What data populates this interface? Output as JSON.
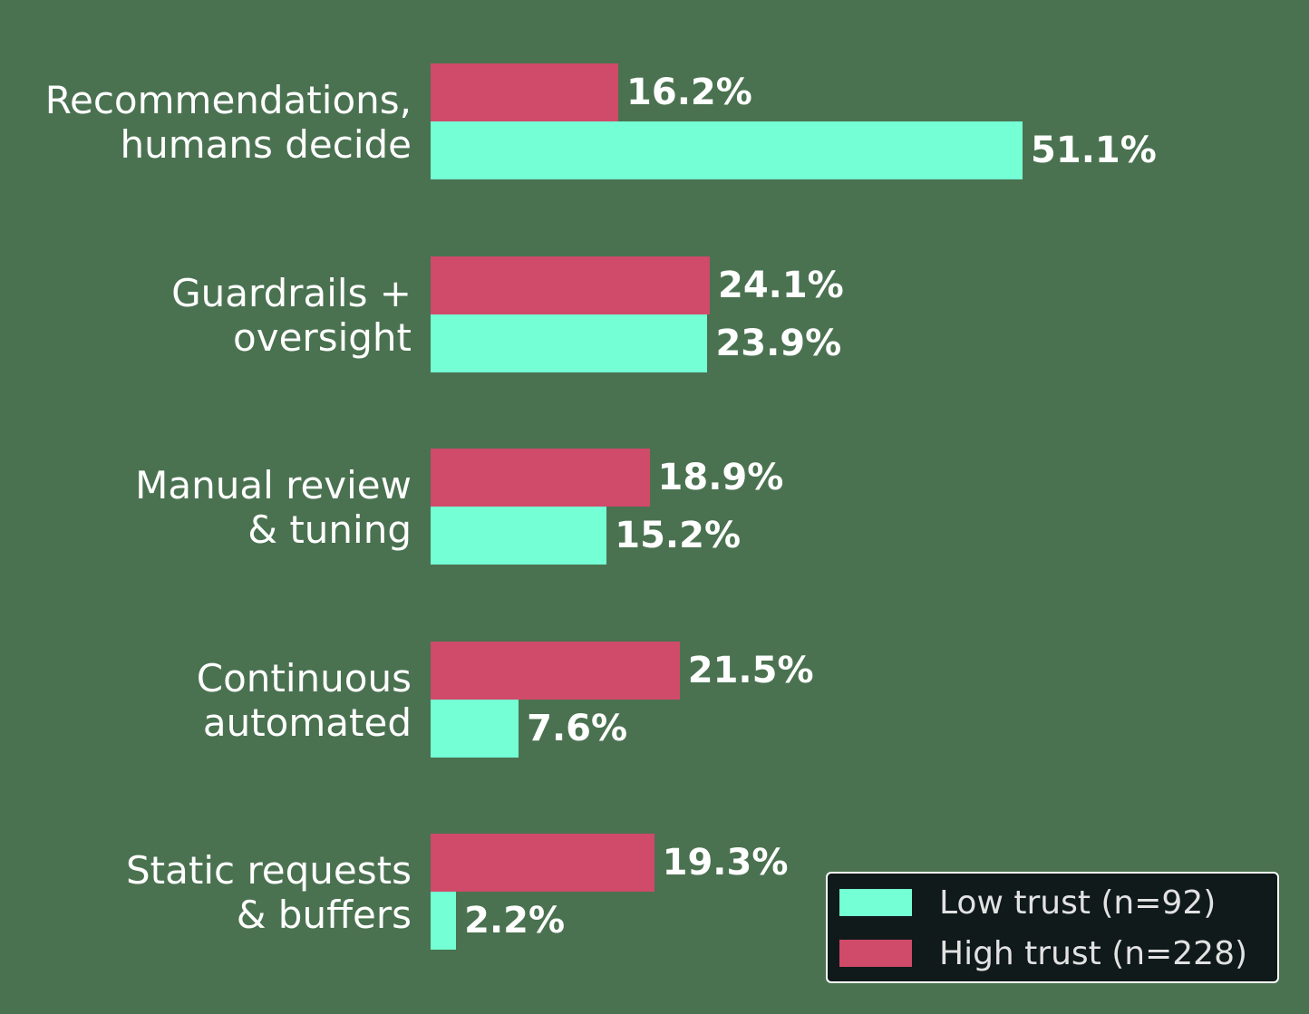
{
  "chart_data": {
    "type": "bar",
    "orientation": "horizontal",
    "title": "",
    "xlabel": "",
    "ylabel": "",
    "categories": [
      "Recommendations, humans decide",
      "Guardrails + oversight",
      "Manual review & tuning",
      "Continuous automated",
      "Static requests & buffers"
    ],
    "category_lines": [
      [
        "Recommendations,",
        "humans decide"
      ],
      [
        "Guardrails +",
        "oversight"
      ],
      [
        "Manual review",
        "& tuning"
      ],
      [
        "Continuous",
        "automated"
      ],
      [
        "Static requests",
        "& buffers"
      ]
    ],
    "series": [
      {
        "name": "Low trust (n=92)",
        "color": "#74ffd4",
        "values": [
          51.1,
          23.9,
          15.2,
          7.6,
          2.2
        ],
        "labels": [
          "51.1%",
          "23.9%",
          "15.2%",
          "7.6%",
          "2.2%"
        ]
      },
      {
        "name": "High trust (n=228)",
        "color": "#d04a6a",
        "values": [
          16.2,
          24.1,
          18.9,
          21.5,
          19.3
        ],
        "labels": [
          "16.2%",
          "24.1%",
          "18.9%",
          "21.5%",
          "19.3%"
        ]
      }
    ],
    "value_unit": "%",
    "grid": false,
    "axes_visible": false,
    "legend_position": "lower right"
  },
  "legend": {
    "low": "Low trust (n=92)",
    "high": "High trust (n=228)"
  },
  "colors": {
    "background": "#4a7250",
    "low": "#74ffd4",
    "high": "#d04a6a",
    "legend_bg": "#101a1a"
  }
}
